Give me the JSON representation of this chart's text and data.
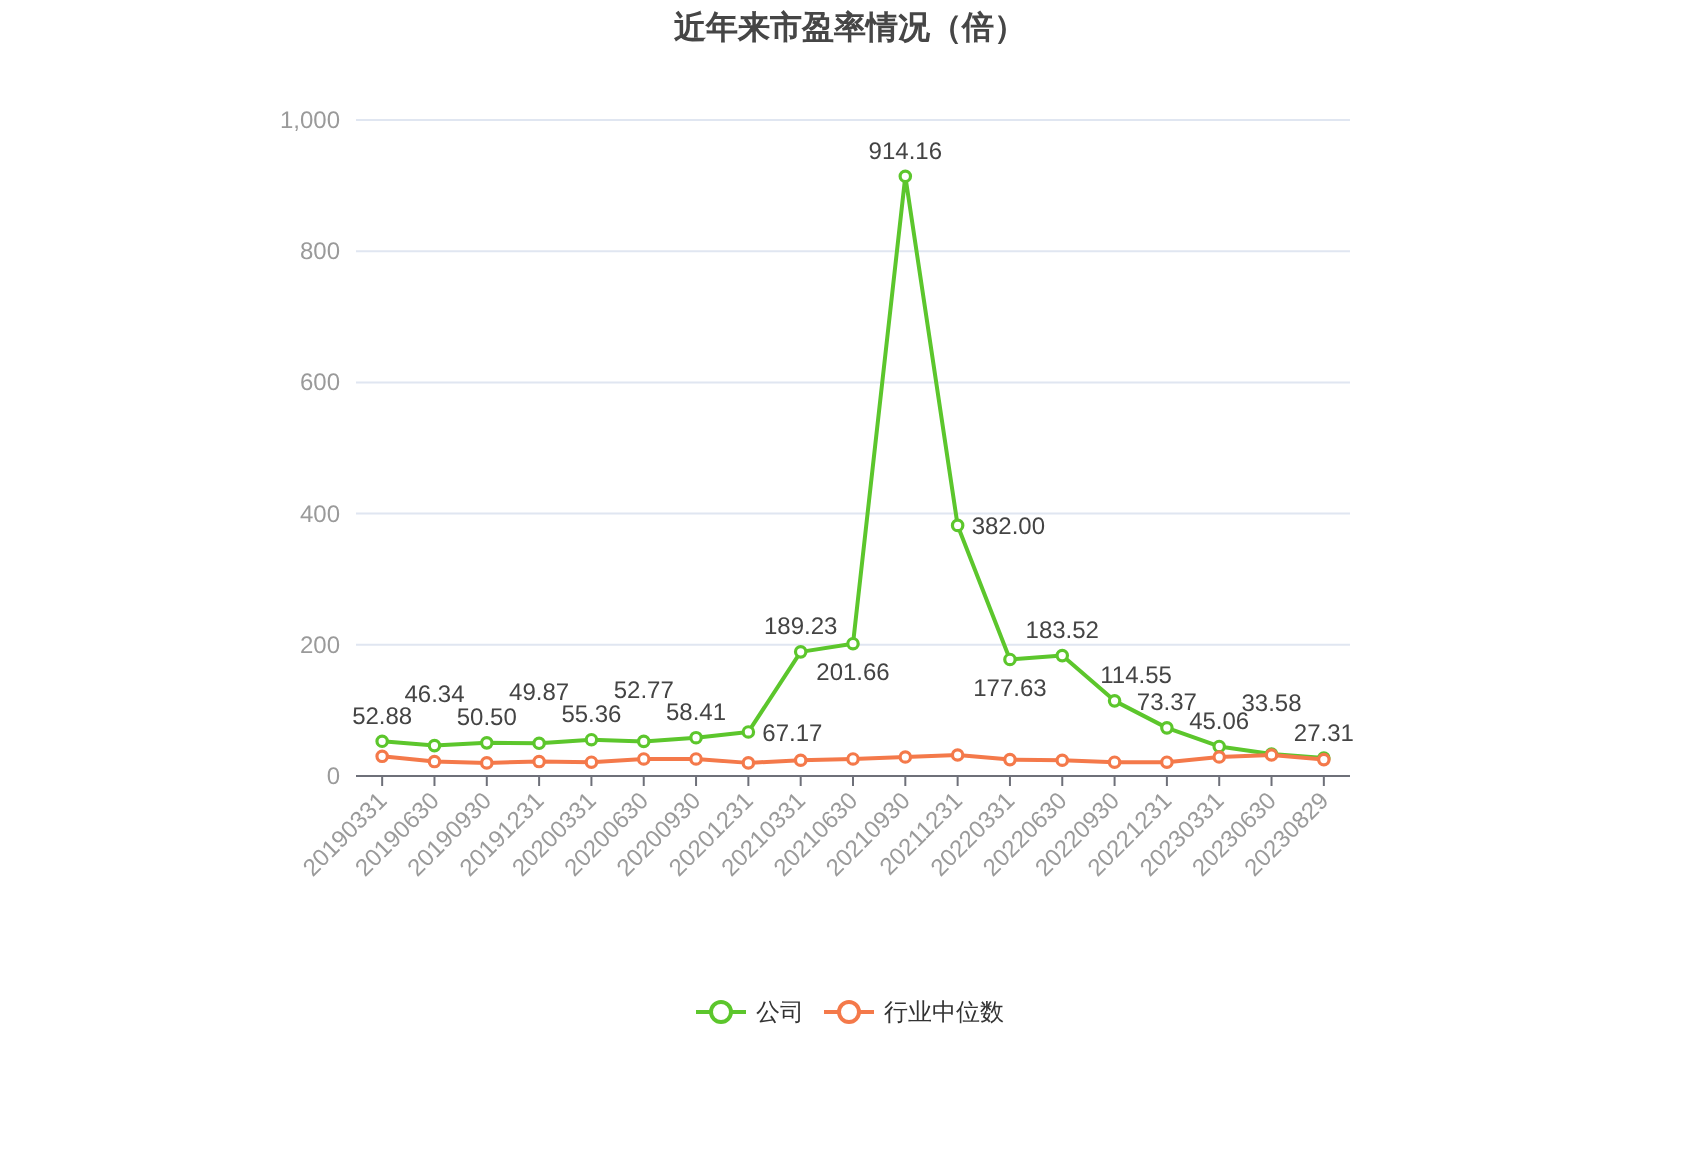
{
  "chart_data": {
    "type": "line",
    "title": "近年来市盈率情况（倍）",
    "categories": [
      "20190331",
      "20190630",
      "20190930",
      "20191231",
      "20200331",
      "20200630",
      "20200930",
      "20201231",
      "20210331",
      "20210630",
      "20210930",
      "20211231",
      "20220331",
      "20220630",
      "20220930",
      "20221231",
      "20230331",
      "20230630",
      "20230829"
    ],
    "series": [
      {
        "name": "公司",
        "color": "#5cc62c",
        "values": [
          52.88,
          46.34,
          50.5,
          49.87,
          55.36,
          52.77,
          58.41,
          67.17,
          189.23,
          201.66,
          914.16,
          382.0,
          177.63,
          183.52,
          114.55,
          73.37,
          45.06,
          33.58,
          27.31
        ],
        "value_labels": [
          "52.88",
          "46.34",
          "50.50",
          "49.87",
          "55.36",
          "52.77",
          "58.41",
          "67.17",
          "189.23",
          "201.66",
          "914.16",
          "382.00",
          "177.63",
          "183.52",
          "114.55",
          "73.37",
          "45.06",
          "33.58",
          "27.31"
        ]
      },
      {
        "name": "行业中位数",
        "color": "#f4794a",
        "values": [
          30,
          22,
          20,
          22,
          21,
          26,
          26,
          20,
          24,
          26,
          29,
          32,
          25,
          24,
          21,
          21,
          29,
          32,
          25
        ]
      }
    ],
    "ylim": [
      0,
      1000
    ],
    "yticks": [
      0,
      200,
      400,
      600,
      800,
      {
        "value": 1000,
        "label": "1,000"
      }
    ],
    "grid": "y",
    "legend": "bottom",
    "marker": "circle"
  }
}
